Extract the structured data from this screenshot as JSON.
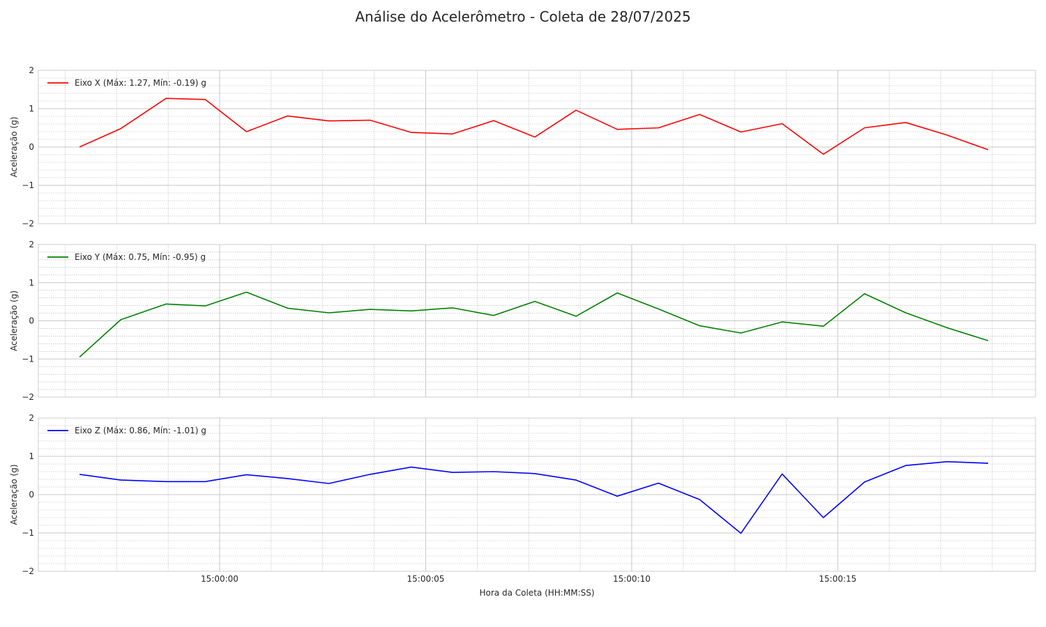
{
  "title": "Análise do Acelerômetro - Coleta de 28/07/2025",
  "chart_data": {
    "type": "line",
    "title": "Análise do Acelerômetro - Coleta de 28/07/2025",
    "xlabel": "Hora da Coleta (HH:MM:SS)",
    "x": [
      "14:59:56",
      "14:59:57",
      "14:59:58",
      "14:59:59",
      "15:00:00",
      "15:00:01",
      "15:00:02",
      "15:00:03",
      "15:00:04",
      "15:00:05",
      "15:00:06",
      "15:00:07",
      "15:00:08",
      "15:00:09",
      "15:00:10",
      "15:00:11",
      "15:00:12",
      "15:00:13",
      "15:00:14",
      "15:00:15",
      "15:00:16",
      "15:00:17",
      "15:00:18"
    ],
    "x_seconds_offset": [
      -3.4,
      -2.4,
      -1.3,
      -0.35,
      0.65,
      1.65,
      2.65,
      3.65,
      4.65,
      5.65,
      6.65,
      7.65,
      8.65,
      9.65,
      10.65,
      11.65,
      12.65,
      13.65,
      14.65,
      15.65,
      16.65,
      17.65,
      18.65
    ],
    "xtick_labels": [
      "15:00:00",
      "15:00:05",
      "15:00:10",
      "15:00:15"
    ],
    "xlim_seconds_offset": [
      -4.4,
      19.8
    ],
    "grid": true,
    "panels": [
      {
        "ylabel": "Aceleração (g)",
        "ylim": [
          -2,
          2
        ],
        "yticks": [
          "2",
          "1",
          "0",
          "−1",
          "−2"
        ],
        "color": "#ff0000",
        "series_name": "Eixo X (Máx: 1.27, Mín: -0.19) g",
        "values": [
          0.0,
          0.48,
          1.27,
          1.24,
          0.4,
          0.81,
          0.68,
          0.7,
          0.38,
          0.34,
          0.69,
          0.26,
          0.96,
          0.46,
          0.5,
          0.85,
          0.39,
          0.61,
          -0.19,
          0.5,
          0.64,
          0.31,
          -0.07
        ]
      },
      {
        "ylabel": "Aceleração (g)",
        "ylim": [
          -2,
          2
        ],
        "yticks": [
          "2",
          "1",
          "0",
          "−1",
          "−2"
        ],
        "color": "#008000",
        "series_name": "Eixo Y (Máx: 0.75, Mín: -0.95) g",
        "values": [
          -0.95,
          0.03,
          0.44,
          0.39,
          0.75,
          0.33,
          0.21,
          0.3,
          0.26,
          0.34,
          0.14,
          0.51,
          0.12,
          0.73,
          0.31,
          -0.13,
          -0.32,
          -0.03,
          -0.14,
          0.71,
          0.21,
          -0.18,
          -0.52
        ]
      },
      {
        "ylabel": "Aceleração (g)",
        "ylim": [
          -2,
          2
        ],
        "yticks": [
          "2",
          "1",
          "0",
          "−1",
          "−2"
        ],
        "color": "#0000ff",
        "series_name": "Eixo Z (Máx: 0.86, Mín: -1.01) g",
        "values": [
          0.53,
          0.38,
          0.34,
          0.34,
          0.52,
          0.42,
          0.29,
          0.53,
          0.72,
          0.58,
          0.6,
          0.55,
          0.38,
          -0.04,
          0.3,
          -0.13,
          -1.01,
          0.54,
          -0.6,
          0.33,
          0.76,
          0.86,
          0.82
        ]
      }
    ]
  }
}
